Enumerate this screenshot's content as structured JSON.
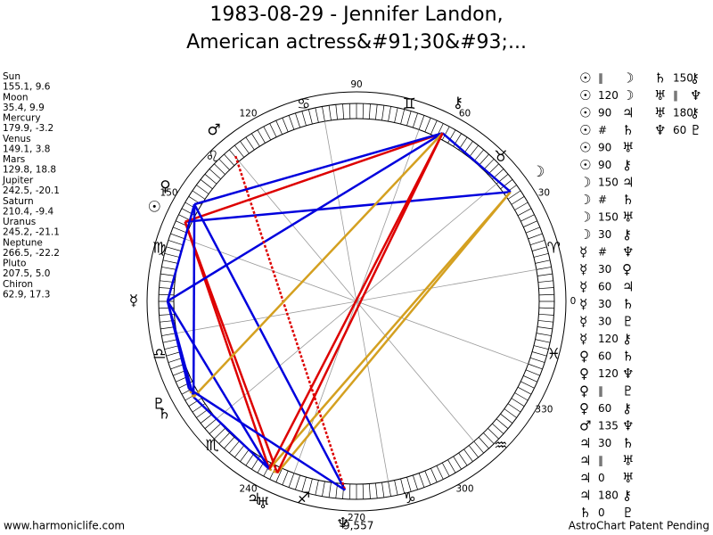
{
  "header": {
    "title_line1": "1983-08-29 - Jennifer Landon,",
    "title_line2": "American actress&#91;30&#93;..."
  },
  "planets": [
    {
      "name": "Sun",
      "position": "155.1, 9.6",
      "glyph": "☉"
    },
    {
      "name": "Moon",
      "position": "35.4, 9.9",
      "glyph": "☽"
    },
    {
      "name": "Mercury",
      "position": "179.9, -3.2",
      "glyph": "☿"
    },
    {
      "name": "Venus",
      "position": "149.1, 3.8",
      "glyph": "♀"
    },
    {
      "name": "Mars",
      "position": "129.8, 18.8",
      "glyph": "♂"
    },
    {
      "name": "Jupiter",
      "position": "242.5, -20.1",
      "glyph": "♃"
    },
    {
      "name": "Saturn",
      "position": "210.4, -9.4",
      "glyph": "♄"
    },
    {
      "name": "Uranus",
      "position": "245.2, -21.1",
      "glyph": "♅"
    },
    {
      "name": "Neptune",
      "position": "266.5, -22.2",
      "glyph": "♆"
    },
    {
      "name": "Pluto",
      "position": "207.5, 5.0",
      "glyph": "♇"
    },
    {
      "name": "Chiron",
      "position": "62.9, 17.3",
      "glyph": "⚷"
    }
  ],
  "signs": [
    "♈",
    "♉",
    "♊",
    "♋",
    "♌",
    "♍",
    "♎",
    "♏",
    "♐",
    "♑",
    "♒",
    "♓"
  ],
  "degree_labels": [
    "0",
    "30",
    "60",
    "90",
    "120",
    "150",
    "240",
    "270",
    "300",
    "330"
  ],
  "aspects": [
    {
      "p1": "☉",
      "aspect": "∥",
      "p2": "☽"
    },
    {
      "p1": "☉",
      "aspect": "120",
      "p2": "☽",
      "color": "#0000dd"
    },
    {
      "p1": "☉",
      "aspect": "90",
      "p2": "♃",
      "color": "#dd0000"
    },
    {
      "p1": "☉",
      "aspect": "#",
      "p2": "♄"
    },
    {
      "p1": "☉",
      "aspect": "90",
      "p2": "♅",
      "color": "#dd0000"
    },
    {
      "p1": "☉",
      "aspect": "90",
      "p2": "⚷",
      "color": "#dd0000"
    },
    {
      "p1": "☽",
      "aspect": "150",
      "p2": "♃",
      "color": "#d4a020"
    },
    {
      "p1": "☽",
      "aspect": "#",
      "p2": "♄"
    },
    {
      "p1": "☽",
      "aspect": "150",
      "p2": "♅",
      "color": "#d4a020"
    },
    {
      "p1": "☽",
      "aspect": "30",
      "p2": "⚷",
      "color": "#0000dd"
    },
    {
      "p1": "☿",
      "aspect": "#",
      "p2": "♆"
    },
    {
      "p1": "☿",
      "aspect": "30",
      "p2": "♀",
      "color": "#0000dd"
    },
    {
      "p1": "☿",
      "aspect": "60",
      "p2": "♃",
      "color": "#0000dd"
    },
    {
      "p1": "☿",
      "aspect": "30",
      "p2": "♄",
      "color": "#0000dd"
    },
    {
      "p1": "☿",
      "aspect": "30",
      "p2": "♇",
      "color": "#0000dd"
    },
    {
      "p1": "☿",
      "aspect": "120",
      "p2": "⚷",
      "color": "#0000dd"
    },
    {
      "p1": "♀",
      "aspect": "60",
      "p2": "♄",
      "color": "#0000dd"
    },
    {
      "p1": "♀",
      "aspect": "120",
      "p2": "♆",
      "color": "#0000dd"
    },
    {
      "p1": "♀",
      "aspect": "∥",
      "p2": "♇"
    },
    {
      "p1": "♀",
      "aspect": "60",
      "p2": "⚷",
      "color": "#0000dd"
    },
    {
      "p1": "♂",
      "aspect": "135",
      "p2": "♆",
      "color": "#dd0000"
    },
    {
      "p1": "♃",
      "aspect": "30",
      "p2": "♄",
      "color": "#0000dd"
    },
    {
      "p1": "♃",
      "aspect": "∥",
      "p2": "♅"
    },
    {
      "p1": "♃",
      "aspect": "0",
      "p2": "♅",
      "color": "#d4a020"
    },
    {
      "p1": "♃",
      "aspect": "180",
      "p2": "⚷",
      "color": "#dd0000"
    },
    {
      "p1": "♄",
      "aspect": "0",
      "p2": "♇",
      "color": "#d4a020"
    },
    {
      "p1": "♄",
      "aspect": "150",
      "p2": "⚷",
      "color": "#d4a020"
    },
    {
      "p1": "♅",
      "aspect": "∥",
      "p2": "♆"
    },
    {
      "p1": "♅",
      "aspect": "180",
      "p2": "⚷",
      "color": "#dd0000"
    },
    {
      "p1": "♆",
      "aspect": "60",
      "p2": "♇",
      "color": "#0000dd"
    }
  ],
  "bottom_label": "-9,557",
  "footer": {
    "left": "www.harmoniclife.com",
    "right": "AstroChart Patent Pending"
  }
}
